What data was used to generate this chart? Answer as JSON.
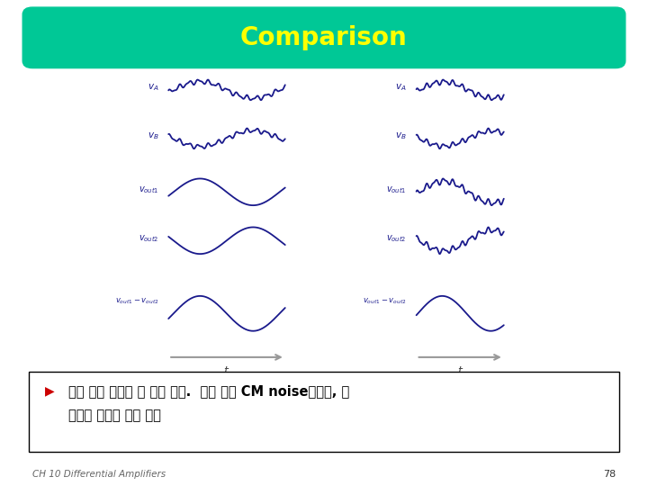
{
  "title": "Comparison",
  "title_color": "#FFFF00",
  "title_bg_color": "#00C896",
  "bg_color": "#FFFFFF",
  "wave_color": "#1A1A8C",
  "arrow_color": "#999999",
  "bullet_color": "#CC0000",
  "footer_text": "CH 10 Differential Amplifiers",
  "page_number": "78",
  "bullet_line1": "차동 출력 전압은 두 경우 같음.  작은 입력 CM noise에서는, 차",
  "bullet_line2": "동쌍은 영향을 받지 않음"
}
